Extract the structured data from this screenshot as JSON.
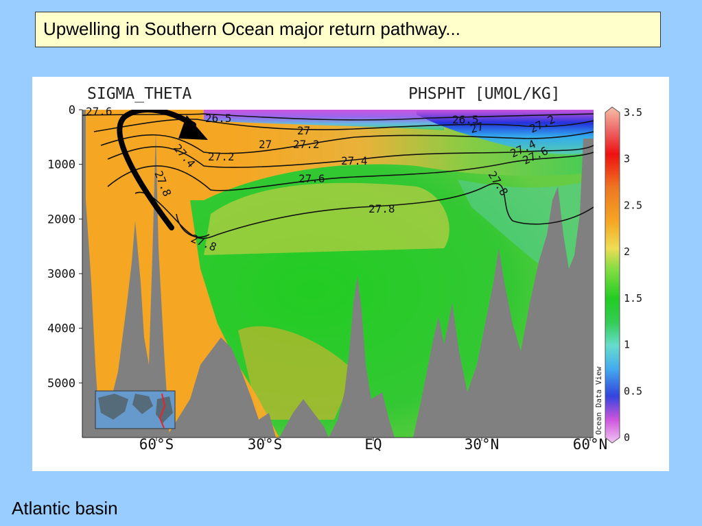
{
  "slide": {
    "title": "Upwelling in Southern Ocean major return pathway...",
    "caption": "Atlantic basin"
  },
  "chart_data": {
    "type": "heatmap",
    "title_left": "SIGMA_THETA",
    "title_right": "PHSPHT [UMOL/KG]",
    "xlabel": "",
    "ylabel": "",
    "x_ticks": [
      "60°S",
      "30°S",
      "EQ",
      "30°N",
      "60°N"
    ],
    "y_ticks": [
      "0",
      "1000",
      "2000",
      "3000",
      "4000",
      "5000"
    ],
    "ylim": [
      0,
      6000
    ],
    "colorbar": {
      "ticks": [
        "0",
        "0.5",
        "1",
        "1.5",
        "2",
        "2.5",
        "3",
        "3.5"
      ],
      "range": [
        0,
        3.5
      ],
      "label": "Ocean Data View"
    },
    "contour_labels": [
      "27.6",
      "26.5",
      "27.4",
      "27",
      "27.2",
      "27",
      "27.2",
      "27.4",
      "27.6",
      "27.8",
      "27.8",
      "27.8",
      "26.5",
      "27",
      "27.2",
      "27.4",
      "27.6",
      "27.8"
    ],
    "colors": {
      "phosphate_low": "#d86ad8",
      "phosphate_mid": "#22cc22",
      "phosphate_high": "#f5a623",
      "seafloor": "#808080",
      "arrow": "#000000"
    }
  }
}
